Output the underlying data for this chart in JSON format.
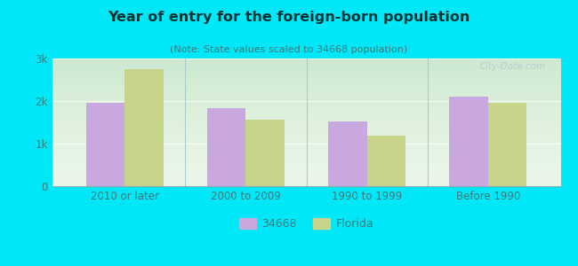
{
  "title": "Year of entry for the foreign-born population",
  "subtitle": "(Note: State values scaled to 34668 population)",
  "categories": [
    "2010 or later",
    "2000 to 2009",
    "1990 to 1999",
    "Before 1990"
  ],
  "values_34668": [
    1960,
    1840,
    1530,
    2100
  ],
  "values_florida": [
    2740,
    1570,
    1180,
    1960
  ],
  "color_34668": "#c9a8e0",
  "color_florida": "#c8d48a",
  "background_outer": "#00e8f8",
  "background_plot_top": "#e8f5e8",
  "background_plot_bottom": "#ffffff",
  "ylim": [
    0,
    3000
  ],
  "yticks": [
    0,
    1000,
    2000,
    3000
  ],
  "ytick_labels": [
    "0",
    "1k",
    "2k",
    "3k"
  ],
  "legend_label_1": "34668",
  "legend_label_2": "Florida",
  "bar_width": 0.32,
  "title_color": "#003333",
  "subtitle_color": "#447777",
  "tick_color": "#447777",
  "watermark": "City-Data.com"
}
